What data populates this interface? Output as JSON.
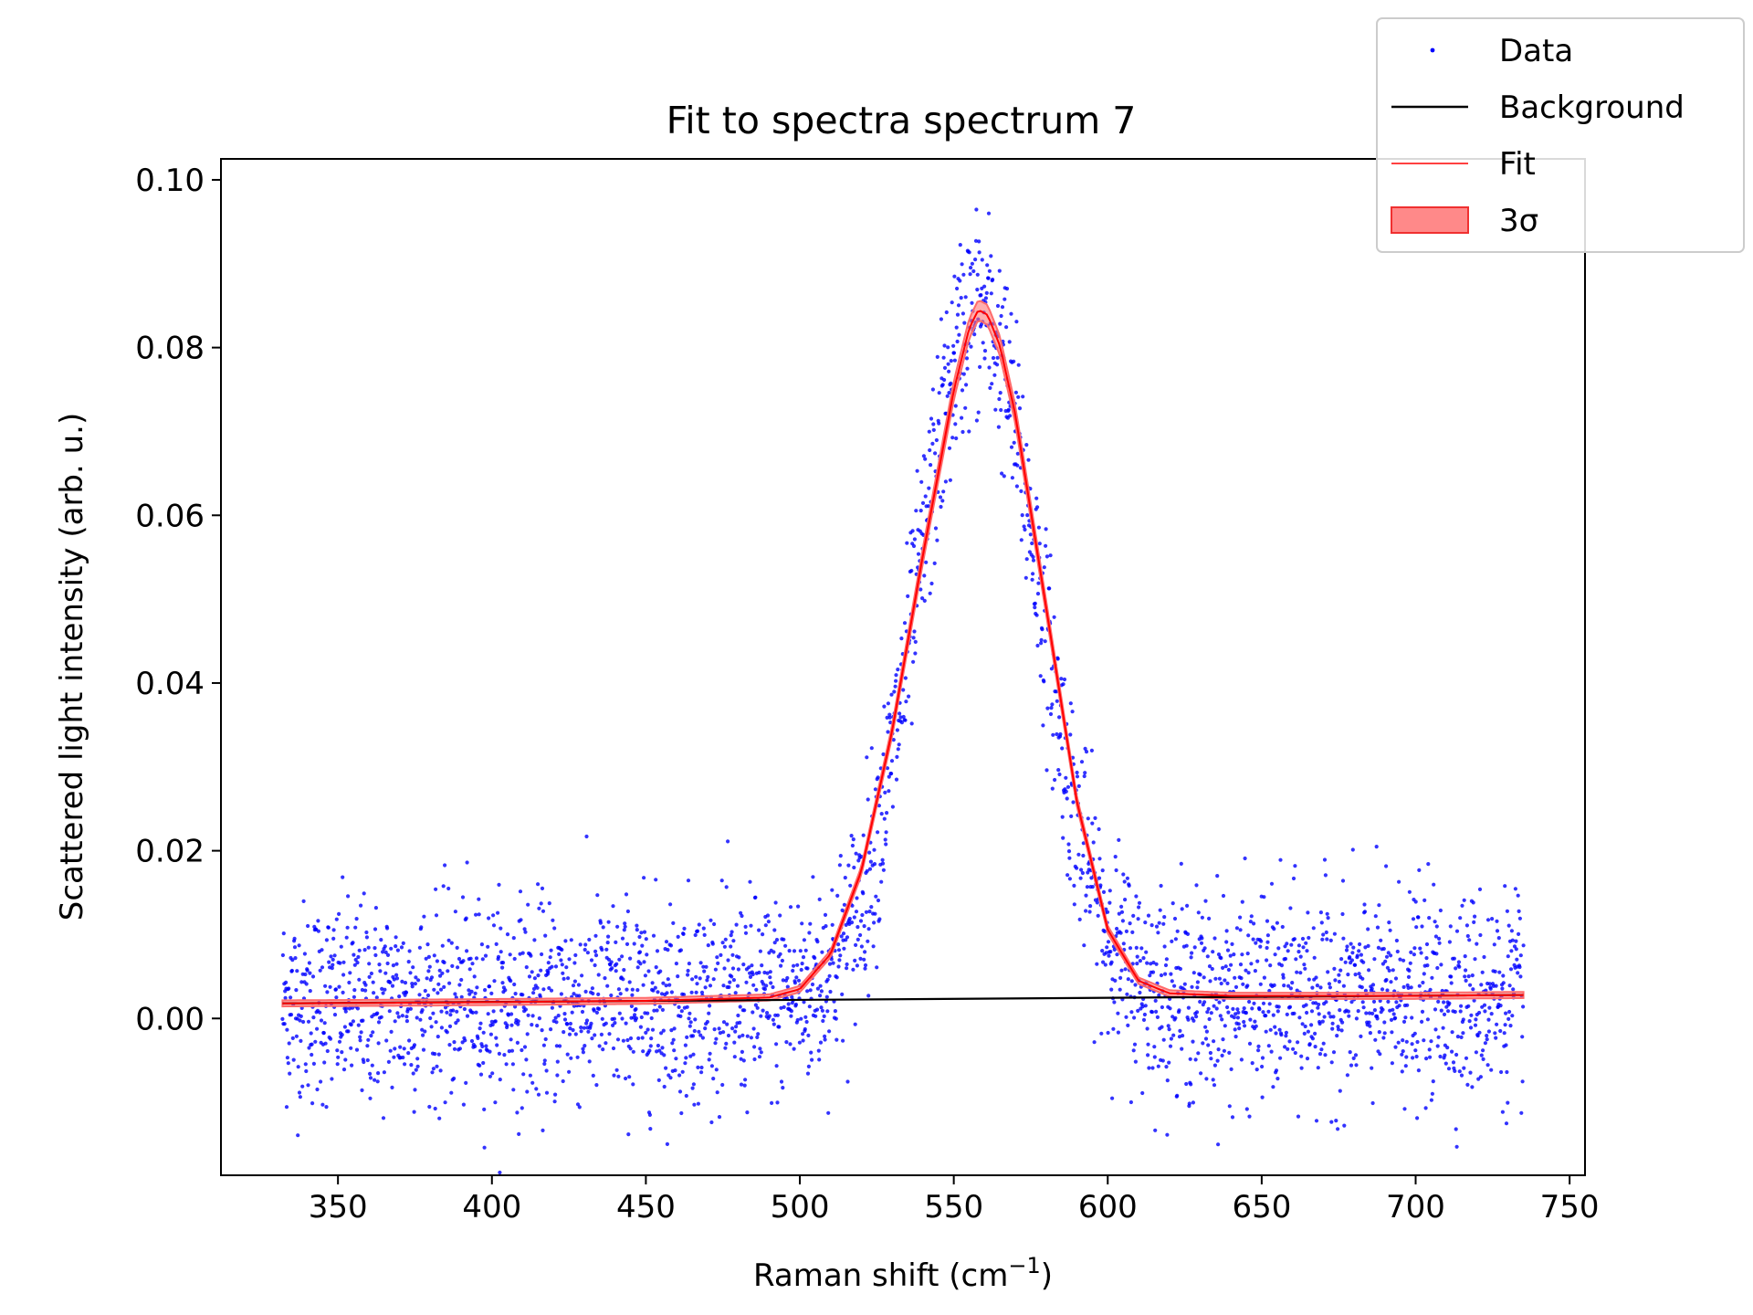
{
  "chart_data": {
    "type": "scatter",
    "title": "Fit to spectra spectrum 7",
    "xlabel": "Raman shift (cm",
    "xlabel_superscript": "−1",
    "xlabel_suffix": ")",
    "ylabel": "Scattered light intensity (arb. u.)",
    "xlim": [
      312,
      755
    ],
    "ylim": [
      -0.0187,
      0.1025
    ],
    "xticks": [
      350,
      400,
      450,
      500,
      550,
      600,
      650,
      700,
      750
    ],
    "xtick_labels": [
      "350",
      "400",
      "450",
      "500",
      "550",
      "600",
      "650",
      "700",
      "750"
    ],
    "yticks": [
      0.0,
      0.02,
      0.04,
      0.06,
      0.08,
      0.1
    ],
    "ytick_labels": [
      "0.00",
      "0.02",
      "0.04",
      "0.06",
      "0.08",
      "0.10"
    ],
    "grid": false,
    "legend_position": "upper right",
    "legend": [
      {
        "label": "Data",
        "kind": "points",
        "color": "#0000ff"
      },
      {
        "label": "Background",
        "kind": "line",
        "color": "#000000"
      },
      {
        "label": "Fit",
        "kind": "line",
        "color": "#ff0000"
      },
      {
        "label": "3σ",
        "kind": "band",
        "color": "#ff6b6b"
      }
    ],
    "series": [
      {
        "name": "Data",
        "style": "points",
        "color": "#0000ff",
        "x_range": [
          332,
          735
        ],
        "point_count": 3000,
        "noise_sd": 0.006,
        "model": "background + gaussian peak",
        "peak_center": 558,
        "peak_amplitude": 0.082,
        "peak_sigma": 19.5
      },
      {
        "name": "Background",
        "style": "line",
        "color": "#000000",
        "x": [
          332,
          735
        ],
        "y": [
          0.0018,
          0.0028
        ]
      },
      {
        "name": "Fit",
        "style": "line",
        "color": "#ff0000",
        "x": [
          332,
          380,
          450,
          490,
          500,
          510,
          520,
          530,
          540,
          550,
          555,
          558,
          561,
          565,
          570,
          580,
          590,
          600,
          610,
          620,
          640,
          700,
          735
        ],
        "y": [
          0.0018,
          0.0019,
          0.0021,
          0.0025,
          0.0035,
          0.0077,
          0.0176,
          0.0343,
          0.0553,
          0.0749,
          0.0823,
          0.0845,
          0.0839,
          0.0802,
          0.072,
          0.049,
          0.0258,
          0.0106,
          0.0045,
          0.003,
          0.0027,
          0.0027,
          0.0028
        ]
      },
      {
        "name": "3σ",
        "style": "band",
        "color": "#ff6b6b",
        "half_width": 0.0012
      }
    ]
  }
}
